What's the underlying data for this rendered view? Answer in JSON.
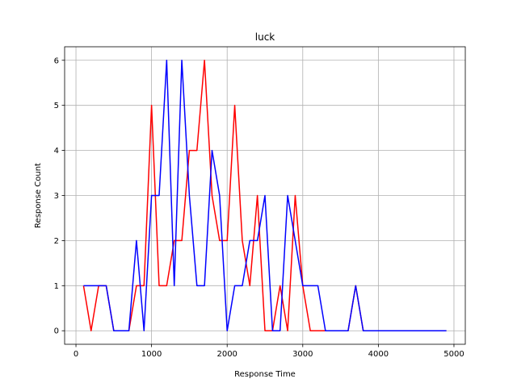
{
  "chart_data": {
    "type": "line",
    "title": "luck",
    "xlabel": "Response Time",
    "ylabel": "Response Count",
    "xlim": [
      -150,
      5150
    ],
    "ylim": [
      -0.3,
      6.3
    ],
    "xticks": [
      0,
      1000,
      2000,
      3000,
      4000,
      5000
    ],
    "yticks": [
      0,
      1,
      2,
      3,
      4,
      5,
      6
    ],
    "grid": true,
    "x": [
      100,
      200,
      300,
      400,
      500,
      600,
      700,
      800,
      900,
      1000,
      1100,
      1200,
      1300,
      1400,
      1500,
      1600,
      1700,
      1800,
      1900,
      2000,
      2100,
      2200,
      2300,
      2400,
      2500,
      2600,
      2700,
      2800,
      2900,
      3000,
      3100,
      3200,
      3300,
      3400,
      3500,
      3600,
      3700,
      3800,
      3900,
      4000,
      4100,
      4200,
      4300,
      4400,
      4500,
      4600,
      4700,
      4800,
      4900
    ],
    "series": [
      {
        "color": "#ff0000",
        "values": [
          1,
          0,
          1,
          1,
          0,
          0,
          0,
          1,
          1,
          5,
          1,
          1,
          2,
          2,
          4,
          4,
          6,
          3,
          2,
          2,
          5,
          2,
          1,
          3,
          0,
          0,
          1,
          0,
          3,
          1,
          0,
          0,
          0,
          0,
          0,
          0,
          1,
          0,
          0,
          0,
          0,
          0,
          0,
          0,
          0,
          0,
          0,
          0,
          0
        ]
      },
      {
        "color": "#0000ff",
        "values": [
          1,
          1,
          1,
          1,
          0,
          0,
          0,
          2,
          0,
          3,
          3,
          6,
          1,
          6,
          3,
          1,
          1,
          4,
          3,
          0,
          1,
          1,
          2,
          2,
          3,
          0,
          0,
          3,
          2,
          1,
          1,
          1,
          0,
          0,
          0,
          0,
          1,
          0,
          0,
          0,
          0,
          0,
          0,
          0,
          0,
          0,
          0,
          0,
          0
        ]
      }
    ]
  }
}
